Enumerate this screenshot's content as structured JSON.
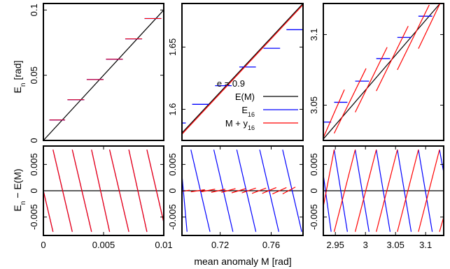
{
  "figure": {
    "x_axis_label": "mean anomaly M  [rad]",
    "colors": {
      "exact": "#000000",
      "e16": "#0000ff",
      "my16": "#ff0000",
      "frame": "#000000"
    }
  },
  "chart_data": [
    {
      "type": "line",
      "panel": "top-left",
      "ylabel": "E_n [rad]",
      "xlim": [
        0,
        0.01
      ],
      "ylim": [
        0,
        0.105
      ],
      "xticks": [],
      "yticks": [
        0,
        0.05,
        0.1
      ],
      "yticklabels": [
        "0",
        "0.05",
        "0.1"
      ],
      "legend": {
        "placement": "inside top-middle panel, bottom right",
        "entries": [
          {
            "label": "e = 0.9",
            "text_only": true
          },
          {
            "label": "E(M)",
            "series": "exact"
          },
          {
            "label": "E_16",
            "series": "e16"
          },
          {
            "label": "M + y_16",
            "series": "my16"
          }
        ]
      },
      "series": [
        {
          "name": "E(M)",
          "key": "exact",
          "points": [
            [
              0,
              0
            ],
            [
              0.01,
              0.1
            ]
          ]
        },
        {
          "name": "E_16",
          "key": "e16",
          "steps": [
            {
              "x": [
                0.0005,
                0.0018
              ],
              "y": 0.0157
            },
            {
              "x": [
                0.002,
                0.0034
              ],
              "y": 0.0312
            },
            {
              "x": [
                0.0036,
                0.005
              ],
              "y": 0.0467
            },
            {
              "x": [
                0.0052,
                0.0066
              ],
              "y": 0.0623
            },
            {
              "x": [
                0.0068,
                0.0082
              ],
              "y": 0.0779
            },
            {
              "x": [
                0.0084,
                0.0098
              ],
              "y": 0.0935
            }
          ]
        },
        {
          "name": "M + y_16",
          "key": "my16",
          "steps": [
            {
              "x": [
                0.0005,
                0.0018
              ],
              "y": 0.0157
            },
            {
              "x": [
                0.002,
                0.0034
              ],
              "y": 0.0312
            },
            {
              "x": [
                0.0036,
                0.005
              ],
              "y": 0.0467
            },
            {
              "x": [
                0.0052,
                0.0066
              ],
              "y": 0.0623
            },
            {
              "x": [
                0.0068,
                0.0082
              ],
              "y": 0.0779
            },
            {
              "x": [
                0.0084,
                0.0098
              ],
              "y": 0.0935
            }
          ]
        }
      ]
    },
    {
      "type": "line",
      "panel": "top-middle",
      "xlim": [
        0.69,
        0.785
      ],
      "ylim": [
        1.575,
        1.685
      ],
      "yticks": [
        1.6,
        1.65
      ],
      "yticklabels": [
        "1.6",
        "1.65"
      ],
      "series": [
        {
          "name": "E(M)",
          "key": "exact",
          "points": [
            [
              0.69,
              1.581
            ],
            [
              0.785,
              1.685
            ]
          ]
        },
        {
          "name": "E_16",
          "key": "e16",
          "steps": [
            {
              "x": [
                0.689,
                0.693
              ],
              "y": 1.589
            },
            {
              "x": [
                0.698,
                0.711
              ],
              "y": 1.604
            },
            {
              "x": [
                0.716,
                0.729
              ],
              "y": 1.619
            },
            {
              "x": [
                0.735,
                0.748
              ],
              "y": 1.634
            },
            {
              "x": [
                0.754,
                0.767
              ],
              "y": 1.649
            },
            {
              "x": [
                0.772,
                0.785
              ],
              "y": 1.664
            }
          ]
        },
        {
          "name": "M + y_16",
          "key": "my16",
          "points": [
            [
              0.69,
              1.58
            ],
            [
              0.785,
              1.684
            ]
          ]
        }
      ]
    },
    {
      "type": "line",
      "panel": "top-right",
      "xlim": [
        2.93,
        3.13
      ],
      "ylim": [
        3.025,
        3.122
      ],
      "yticks": [
        3.05,
        3.1
      ],
      "yticklabels": [
        "3.05",
        "3.1"
      ],
      "series": [
        {
          "name": "E(M)",
          "key": "exact",
          "points": [
            [
              2.93,
              3.026
            ],
            [
              3.13,
              3.125
            ]
          ]
        },
        {
          "name": "E_16",
          "key": "e16",
          "steps": [
            {
              "x": [
                2.93,
                2.943
              ],
              "y": 3.038
            },
            {
              "x": [
                2.948,
                2.97
              ],
              "y": 3.052
            },
            {
              "x": [
                2.983,
                3.006
              ],
              "y": 3.067
            },
            {
              "x": [
                3.018,
                3.041
              ],
              "y": 3.083
            },
            {
              "x": [
                3.053,
                3.076
              ],
              "y": 3.098
            },
            {
              "x": [
                3.088,
                3.111
              ],
              "y": 3.113
            }
          ]
        },
        {
          "name": "M + y_16",
          "key": "my16",
          "segments": [
            {
              "x": [
                2.93,
                2.965
              ],
              "y": [
                3.027,
                3.061
              ]
            },
            {
              "x": [
                2.948,
                3.001
              ],
              "y": [
                3.03,
                3.076
              ]
            },
            {
              "x": [
                2.983,
                3.036
              ],
              "y": [
                3.045,
                3.091
              ]
            },
            {
              "x": [
                3.018,
                3.071
              ],
              "y": [
                3.06,
                3.106
              ]
            },
            {
              "x": [
                3.053,
                3.106
              ],
              "y": [
                3.075,
                3.121
              ]
            },
            {
              "x": [
                3.088,
                3.125
              ],
              "y": [
                3.09,
                3.123
              ]
            }
          ]
        }
      ]
    },
    {
      "type": "line",
      "panel": "bottom-left",
      "ylabel": "E_n - E(M)",
      "xlim": [
        0,
        0.01
      ],
      "ylim": [
        -0.0085,
        0.0085
      ],
      "xticks": [
        0,
        0.005,
        0.01
      ],
      "xticklabels": [
        "0",
        "0.005",
        "0.01"
      ],
      "yticks": [
        -0.005,
        0,
        0.005
      ],
      "yticklabels": [
        "-0.005",
        "0",
        "0.005"
      ],
      "series": [
        {
          "name": "E(M)",
          "key": "exact",
          "points": [
            [
              0,
              0
            ],
            [
              0.01,
              0
            ]
          ]
        },
        {
          "name": "E_16",
          "key": "e16",
          "segments": [
            {
              "x": [
                0,
                0.0008
              ],
              "y": [
                0.0,
                -0.0078
              ]
            },
            {
              "x": [
                0.0008,
                0.0024
              ],
              "y": [
                0.0078,
                -0.0078
              ]
            },
            {
              "x": [
                0.0024,
                0.004
              ],
              "y": [
                0.0078,
                -0.0078
              ]
            },
            {
              "x": [
                0.004,
                0.0055
              ],
              "y": [
                0.0078,
                -0.0078
              ]
            },
            {
              "x": [
                0.0055,
                0.0071
              ],
              "y": [
                0.0078,
                -0.0078
              ]
            },
            {
              "x": [
                0.0071,
                0.0086
              ],
              "y": [
                0.0078,
                -0.0078
              ]
            },
            {
              "x": [
                0.0086,
                0.01
              ],
              "y": [
                0.0078,
                -0.006
              ]
            }
          ]
        },
        {
          "name": "M + y_16",
          "key": "my16",
          "segments": [
            {
              "x": [
                0,
                0.0008
              ],
              "y": [
                0.0,
                -0.0078
              ]
            },
            {
              "x": [
                0.0008,
                0.0024
              ],
              "y": [
                0.0078,
                -0.0078
              ]
            },
            {
              "x": [
                0.0024,
                0.004
              ],
              "y": [
                0.0078,
                -0.0078
              ]
            },
            {
              "x": [
                0.004,
                0.0055
              ],
              "y": [
                0.0078,
                -0.0078
              ]
            },
            {
              "x": [
                0.0055,
                0.0071
              ],
              "y": [
                0.0078,
                -0.0078
              ]
            },
            {
              "x": [
                0.0071,
                0.0086
              ],
              "y": [
                0.0078,
                -0.0078
              ]
            },
            {
              "x": [
                0.0086,
                0.01
              ],
              "y": [
                0.0078,
                -0.006
              ]
            }
          ]
        }
      ]
    },
    {
      "type": "line",
      "panel": "bottom-middle",
      "xlim": [
        0.69,
        0.785
      ],
      "ylim": [
        -0.0085,
        0.0085
      ],
      "xticks": [
        0.72,
        0.76
      ],
      "xticklabels": [
        "0.72",
        "0.76"
      ],
      "yticks": [
        -0.005,
        0,
        0.005
      ],
      "yticklabels": [
        "-0.005",
        "0",
        "0.005"
      ],
      "series": [
        {
          "name": "E(M)",
          "key": "exact",
          "points": [
            [
              0.69,
              0
            ],
            [
              0.785,
              0
            ]
          ]
        },
        {
          "name": "E_16",
          "key": "e16",
          "segments": [
            {
              "x": [
                0.69,
                0.694
              ],
              "y": [
                0.003,
                -0.0078
              ]
            },
            {
              "x": [
                0.697,
                0.712
              ],
              "y": [
                0.0078,
                -0.0078
              ]
            },
            {
              "x": [
                0.715,
                0.73
              ],
              "y": [
                0.0078,
                -0.0078
              ]
            },
            {
              "x": [
                0.733,
                0.748
              ],
              "y": [
                0.0078,
                -0.0078
              ]
            },
            {
              "x": [
                0.751,
                0.766
              ],
              "y": [
                0.0078,
                -0.0078
              ]
            },
            {
              "x": [
                0.769,
                0.784
              ],
              "y": [
                0.0078,
                -0.0078
              ]
            }
          ]
        },
        {
          "name": "M + y_16",
          "key": "my16",
          "segments": [
            {
              "x": [
                0.69,
                0.696
              ],
              "y": [
                -0.0001,
                0.0001
              ]
            },
            {
              "x": [
                0.697,
                0.708
              ],
              "y": [
                -0.0002,
                0.0002
              ]
            },
            {
              "x": [
                0.705,
                0.716
              ],
              "y": [
                -0.0002,
                0.0003
              ]
            },
            {
              "x": [
                0.713,
                0.724
              ],
              "y": [
                -0.0003,
                0.0003
              ]
            },
            {
              "x": [
                0.721,
                0.732
              ],
              "y": [
                -0.0003,
                0.0004
              ]
            },
            {
              "x": [
                0.729,
                0.74
              ],
              "y": [
                -0.0004,
                0.0004
              ]
            },
            {
              "x": [
                0.737,
                0.748
              ],
              "y": [
                -0.0004,
                0.0005
              ]
            },
            {
              "x": [
                0.745,
                0.756
              ],
              "y": [
                -0.0005,
                0.0005
              ]
            },
            {
              "x": [
                0.753,
                0.764
              ],
              "y": [
                -0.0005,
                0.0006
              ]
            },
            {
              "x": [
                0.761,
                0.772
              ],
              "y": [
                -0.0006,
                0.0006
              ]
            },
            {
              "x": [
                0.769,
                0.779
              ],
              "y": [
                -0.0006,
                0.0007
              ]
            }
          ]
        }
      ]
    },
    {
      "type": "line",
      "panel": "bottom-right",
      "xlim": [
        2.93,
        3.13
      ],
      "ylim": [
        -0.0085,
        0.0085
      ],
      "xticks": [
        2.95,
        3,
        3.05,
        3.1
      ],
      "xticklabels": [
        "2.95",
        "3",
        "3.05",
        "3.1"
      ],
      "yticks": [
        -0.005,
        0,
        0.005
      ],
      "yticklabels": [
        "-0.005",
        "0",
        "0.005"
      ],
      "series": [
        {
          "name": "E(M)",
          "key": "exact",
          "points": [
            [
              2.93,
              0
            ],
            [
              3.13,
              0
            ]
          ]
        },
        {
          "name": "E_16",
          "key": "e16",
          "segments": [
            {
              "x": [
                2.93,
                2.943
              ],
              "y": [
                0.003,
                -0.0078
              ]
            },
            {
              "x": [
                2.948,
                2.97
              ],
              "y": [
                0.0078,
                -0.0078
              ]
            },
            {
              "x": [
                2.983,
                3.006
              ],
              "y": [
                0.0078,
                -0.0078
              ]
            },
            {
              "x": [
                3.018,
                3.041
              ],
              "y": [
                0.0078,
                -0.0078
              ]
            },
            {
              "x": [
                3.053,
                3.076
              ],
              "y": [
                0.0078,
                -0.0078
              ]
            },
            {
              "x": [
                3.088,
                3.111
              ],
              "y": [
                0.0078,
                -0.0078
              ]
            },
            {
              "x": [
                3.123,
                3.13
              ],
              "y": [
                0.0078,
                0.0035
              ]
            }
          ]
        },
        {
          "name": "M + y_16",
          "key": "my16",
          "segments": [
            {
              "x": [
                2.93,
                2.948
              ],
              "y": [
                -0.003,
                0.0078
              ]
            },
            {
              "x": [
                2.948,
                2.983
              ],
              "y": [
                -0.0078,
                0.0078
              ]
            },
            {
              "x": [
                2.983,
                3.018
              ],
              "y": [
                -0.0078,
                0.0078
              ]
            },
            {
              "x": [
                3.018,
                3.053
              ],
              "y": [
                -0.0078,
                0.0078
              ]
            },
            {
              "x": [
                3.053,
                3.088
              ],
              "y": [
                -0.0078,
                0.0078
              ]
            },
            {
              "x": [
                3.088,
                3.123
              ],
              "y": [
                -0.0078,
                0.0078
              ]
            },
            {
              "x": [
                3.123,
                3.13
              ],
              "y": [
                -0.0078,
                -0.005
              ]
            }
          ]
        }
      ]
    }
  ]
}
